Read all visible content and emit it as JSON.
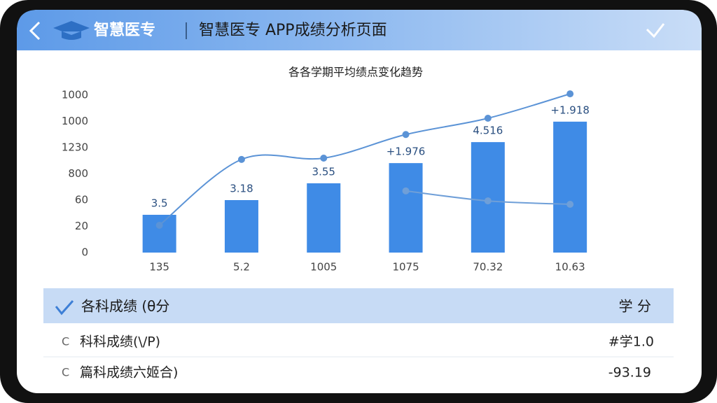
{
  "header": {
    "brand": "智慧医专",
    "title": "智慧医专 APP成绩分析页面"
  },
  "chart_data": {
    "type": "combo",
    "title": "各各学期平均绩点变化趋势",
    "categories": [
      "135",
      "5.2",
      "1005",
      "1075",
      "70.32",
      "10.63"
    ],
    "ylim": [
      0,
      6
    ],
    "yticks": [
      0,
      {
        "value": 1,
        "label": "20"
      },
      {
        "value": 2,
        "label": "60"
      },
      {
        "value": 3,
        "label": "800"
      },
      {
        "value": 4,
        "label": "1230"
      },
      {
        "value": 5,
        "label": "1000"
      },
      {
        "value": 6,
        "label": "1000"
      }
    ],
    "series": [
      {
        "type": "bar",
        "color": "#3f8be6",
        "values": [
          1.44,
          2.0,
          2.64,
          3.41,
          4.21,
          4.99
        ]
      },
      {
        "type": "line",
        "color": "#5b93d6",
        "values": [
          1.04,
          3.55,
          3.6,
          4.5,
          5.12,
          6.05
        ]
      },
      {
        "type": "line",
        "color": "#6f9fd8",
        "values": [
          null,
          null,
          null,
          2.35,
          1.97,
          1.84
        ]
      }
    ],
    "annotations": [
      "3.5",
      "3.18",
      "3.55",
      "+1.976",
      "4.516",
      "+1.918"
    ]
  },
  "table": {
    "header": [
      "各科成绩 (θ分",
      "学 分"
    ],
    "rows": [
      [
        "科科成绩(\\/P)",
        "#学1.0"
      ],
      [
        "篇科成绩六姬合)",
        "-93.19"
      ]
    ]
  }
}
